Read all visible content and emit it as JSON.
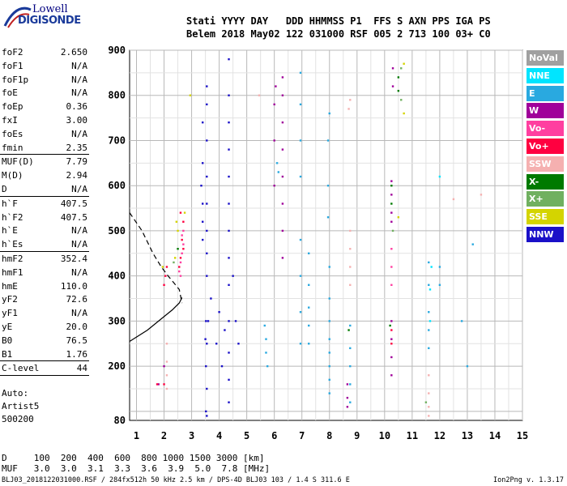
{
  "logo": {
    "line1": "Lowell",
    "line2": "DIGISONDE"
  },
  "header": {
    "line1": "Stati YYYY DAY   DDD HHMMSS P1  FFS S AXN PPS IGA PS",
    "line2": "Belem 2018 May02 122 031000 RSF 005 2 713 100 03+ C0"
  },
  "params": [
    {
      "k": "foF2",
      "v": "2.650"
    },
    {
      "k": "foF1",
      "v": "N/A"
    },
    {
      "k": "foF1p",
      "v": "N/A"
    },
    {
      "k": "foE",
      "v": "N/A"
    },
    {
      "k": "foEp",
      "v": "0.36"
    },
    {
      "k": "fxI",
      "v": "3.00"
    },
    {
      "k": "foEs",
      "v": "N/A"
    },
    {
      "k": "fmin",
      "v": "2.35",
      "sep": true
    },
    {
      "k": "MUF(D)",
      "v": "7.79"
    },
    {
      "k": "M(D)",
      "v": "2.94"
    },
    {
      "k": "D",
      "v": "N/A",
      "sep": true
    },
    {
      "k": "h`F",
      "v": "407.5"
    },
    {
      "k": "h`F2",
      "v": "407.5"
    },
    {
      "k": "h`E",
      "v": "N/A"
    },
    {
      "k": "h`Es",
      "v": "N/A",
      "sep": true
    },
    {
      "k": "hmF2",
      "v": "352.4"
    },
    {
      "k": "hmF1",
      "v": "N/A"
    },
    {
      "k": "hmE",
      "v": "110.0"
    },
    {
      "k": "yF2",
      "v": "72.6"
    },
    {
      "k": "yF1",
      "v": "N/A"
    },
    {
      "k": "yE",
      "v": "20.0"
    },
    {
      "k": "B0",
      "v": "76.5"
    },
    {
      "k": "B1",
      "v": "1.76",
      "sep": true
    },
    {
      "k": "C-level",
      "v": "44",
      "sep": true
    }
  ],
  "auto": {
    "line1": "Auto:",
    "line2": "Artist5",
    "line3": "500200"
  },
  "distance_table": {
    "line1": "D     100  200  400  600  800 1000 1500 3000 [km]",
    "line2": "MUF   3.0  3.0  3.1  3.3  3.6  3.9  5.0  7.8 [MHz]"
  },
  "footer": "BLJ03_2018122031000.RSF / 284fx512h 50 kHz 2.5 km / DPS-4D BLJ03 103 / 1.4 S 311.6 E",
  "version": "Ion2Png v. 1.3.17",
  "legend": [
    {
      "label": "NoVal",
      "color": "#a0a0a0"
    },
    {
      "label": "NNE",
      "color": "#00e5ff"
    },
    {
      "label": "E",
      "color": "#29a9e0"
    },
    {
      "label": "W",
      "color": "#a0009a"
    },
    {
      "label": "Vo-",
      "color": "#ff3fa0"
    },
    {
      "label": "Vo+",
      "color": "#ff0040"
    },
    {
      "label": "SSW",
      "color": "#f5b0b0"
    },
    {
      "label": "X-",
      "color": "#007a00"
    },
    {
      "label": "X+",
      "color": "#70b060"
    },
    {
      "label": "SSE",
      "color": "#d4d400"
    },
    {
      "label": "NNW",
      "color": "#1a10c8"
    }
  ],
  "chart_data": {
    "type": "scatter",
    "x_ticks": [
      "1",
      "2",
      "3",
      "4",
      "5",
      "6",
      "7",
      "8",
      "9",
      "10",
      "11",
      "12",
      "13",
      "14",
      "15"
    ],
    "y_ticks": [
      "80",
      "200",
      "300",
      "400",
      "500",
      "600",
      "700",
      "800",
      "900"
    ],
    "xlim": [
      0.75,
      15
    ],
    "ylim": [
      80,
      900
    ],
    "grid": true,
    "traces": [
      {
        "name": "NNW",
        "color": "#1a10c8",
        "points": [
          [
            3.55,
            400
          ],
          [
            3.55,
            450
          ],
          [
            3.55,
            500
          ],
          [
            3.55,
            560
          ],
          [
            3.55,
            620
          ],
          [
            3.55,
            700
          ],
          [
            3.55,
            780
          ],
          [
            3.55,
            820
          ],
          [
            3.52,
            300
          ],
          [
            3.55,
            250
          ],
          [
            3.52,
            200
          ],
          [
            3.55,
            150
          ],
          [
            3.52,
            100
          ],
          [
            3.55,
            90
          ],
          [
            3.4,
            480
          ],
          [
            3.4,
            520
          ],
          [
            3.4,
            560
          ],
          [
            3.35,
            600
          ],
          [
            3.4,
            650
          ],
          [
            3.4,
            740
          ],
          [
            4.35,
            500
          ],
          [
            4.35,
            560
          ],
          [
            4.35,
            620
          ],
          [
            4.35,
            680
          ],
          [
            4.35,
            740
          ],
          [
            4.35,
            800
          ],
          [
            4.35,
            880
          ],
          [
            4.35,
            440
          ],
          [
            4.35,
            380
          ],
          [
            4.35,
            300
          ],
          [
            4.35,
            230
          ],
          [
            4.35,
            170
          ],
          [
            4.35,
            120
          ],
          [
            3.7,
            350
          ],
          [
            3.6,
            300
          ],
          [
            3.5,
            260
          ],
          [
            4.2,
            280
          ],
          [
            4.0,
            320
          ],
          [
            3.9,
            250
          ],
          [
            4.1,
            200
          ],
          [
            4.5,
            400
          ],
          [
            4.6,
            300
          ],
          [
            4.7,
            250
          ]
        ]
      },
      {
        "name": "E",
        "color": "#29a9e0",
        "points": [
          [
            6.95,
            620
          ],
          [
            6.95,
            700
          ],
          [
            6.95,
            780
          ],
          [
            6.95,
            850
          ],
          [
            6.95,
            480
          ],
          [
            6.95,
            400
          ],
          [
            6.95,
            320
          ],
          [
            6.95,
            250
          ],
          [
            7.25,
            380
          ],
          [
            7.25,
            330
          ],
          [
            7.25,
            290
          ],
          [
            7.25,
            250
          ],
          [
            7.25,
            450
          ],
          [
            8.0,
            420
          ],
          [
            8.0,
            350
          ],
          [
            8.0,
            300
          ],
          [
            8.0,
            260
          ],
          [
            8.0,
            230
          ],
          [
            8.0,
            200
          ],
          [
            8.0,
            170
          ],
          [
            8.0,
            140
          ],
          [
            7.95,
            530
          ],
          [
            7.95,
            600
          ],
          [
            7.95,
            700
          ],
          [
            8.0,
            760
          ],
          [
            8.75,
            290
          ],
          [
            8.75,
            240
          ],
          [
            8.75,
            200
          ],
          [
            8.75,
            160
          ],
          [
            8.75,
            120
          ],
          [
            11.6,
            430
          ],
          [
            11.6,
            380
          ],
          [
            11.6,
            320
          ],
          [
            11.6,
            280
          ],
          [
            11.6,
            240
          ],
          [
            5.65,
            290
          ],
          [
            5.7,
            260
          ],
          [
            5.7,
            230
          ],
          [
            5.75,
            200
          ],
          [
            6.1,
            650
          ],
          [
            6.15,
            630
          ],
          [
            12.0,
            420
          ],
          [
            12.0,
            380
          ],
          [
            12.8,
            300
          ],
          [
            13.0,
            200
          ],
          [
            13.2,
            470
          ]
        ]
      },
      {
        "name": "W",
        "color": "#a0009a",
        "points": [
          [
            6.3,
            440
          ],
          [
            6.3,
            500
          ],
          [
            6.3,
            560
          ],
          [
            6.3,
            620
          ],
          [
            6.3,
            680
          ],
          [
            6.3,
            740
          ],
          [
            6.3,
            800
          ],
          [
            6.3,
            840
          ],
          [
            6.0,
            600
          ],
          [
            6.0,
            700
          ],
          [
            6.0,
            780
          ],
          [
            6.05,
            820
          ],
          [
            10.25,
            540
          ],
          [
            10.25,
            580
          ],
          [
            10.25,
            610
          ],
          [
            10.25,
            520
          ],
          [
            10.3,
            860
          ],
          [
            10.3,
            820
          ],
          [
            10.25,
            300
          ],
          [
            10.25,
            260
          ],
          [
            10.25,
            220
          ],
          [
            10.25,
            180
          ],
          [
            8.65,
            160
          ],
          [
            8.65,
            130
          ],
          [
            8.65,
            110
          ],
          [
            2.0,
            200
          ],
          [
            1.8,
            160
          ]
        ]
      },
      {
        "name": "Vo-",
        "color": "#ff3fa0",
        "points": [
          [
            2.6,
            430
          ],
          [
            2.65,
            450
          ],
          [
            2.7,
            470
          ],
          [
            2.65,
            490
          ],
          [
            2.55,
            410
          ],
          [
            2.6,
            400
          ],
          [
            2.7,
            500
          ],
          [
            10.25,
            380
          ],
          [
            10.25,
            420
          ],
          [
            10.25,
            460
          ]
        ]
      },
      {
        "name": "Vo+",
        "color": "#ff0040",
        "points": [
          [
            2.6,
            440
          ],
          [
            2.7,
            460
          ],
          [
            2.55,
            420
          ],
          [
            2.65,
            480
          ],
          [
            2.7,
            520
          ],
          [
            2.6,
            540
          ],
          [
            2.05,
            400
          ],
          [
            2.1,
            420
          ],
          [
            2.0,
            380
          ],
          [
            1.75,
            160
          ],
          [
            2.0,
            160
          ],
          [
            10.25,
            250
          ],
          [
            10.25,
            280
          ]
        ]
      },
      {
        "name": "SSW",
        "color": "#f5b0b0",
        "points": [
          [
            8.75,
            500
          ],
          [
            8.75,
            460
          ],
          [
            8.75,
            420
          ],
          [
            8.75,
            380
          ],
          [
            8.7,
            770
          ],
          [
            8.75,
            790
          ],
          [
            2.1,
            250
          ],
          [
            2.1,
            210
          ],
          [
            2.1,
            180
          ],
          [
            2.1,
            150
          ],
          [
            11.6,
            180
          ],
          [
            11.6,
            140
          ],
          [
            11.6,
            110
          ],
          [
            11.6,
            90
          ],
          [
            5.45,
            800
          ],
          [
            13.5,
            580
          ],
          [
            12.5,
            570
          ]
        ]
      },
      {
        "name": "X-",
        "color": "#007a00",
        "points": [
          [
            10.5,
            810
          ],
          [
            10.5,
            840
          ],
          [
            10.25,
            600
          ],
          [
            10.25,
            560
          ],
          [
            8.7,
            280
          ],
          [
            10.2,
            290
          ],
          [
            2.5,
            460
          ]
        ]
      },
      {
        "name": "X+",
        "color": "#70b060",
        "points": [
          [
            10.6,
            790
          ],
          [
            10.6,
            860
          ],
          [
            2.35,
            430
          ],
          [
            10.3,
            500
          ],
          [
            11.5,
            120
          ]
        ]
      },
      {
        "name": "SSE",
        "color": "#d4d400",
        "points": [
          [
            2.5,
            500
          ],
          [
            2.45,
            520
          ],
          [
            2.75,
            540
          ],
          [
            2.4,
            440
          ],
          [
            1.95,
            420
          ],
          [
            10.7,
            870
          ],
          [
            10.7,
            760
          ],
          [
            10.5,
            530
          ],
          [
            2.95,
            800
          ]
        ]
      },
      {
        "name": "NNE",
        "color": "#00e5ff",
        "points": [
          [
            11.65,
            370
          ],
          [
            11.65,
            300
          ],
          [
            11.7,
            420
          ],
          [
            12.0,
            620
          ]
        ]
      }
    ],
    "virtual_trace": [
      [
        0.75,
        540
      ],
      [
        1.2,
        500
      ],
      [
        1.6,
        450
      ],
      [
        1.9,
        420
      ],
      [
        2.15,
        400
      ],
      [
        2.35,
        385
      ],
      [
        2.55,
        370
      ],
      [
        2.65,
        340
      ]
    ],
    "true_profile": [
      [
        0.75,
        255
      ],
      [
        1.4,
        280
      ],
      [
        1.9,
        305
      ],
      [
        2.3,
        325
      ],
      [
        2.55,
        340
      ],
      [
        2.65,
        352
      ]
    ]
  }
}
